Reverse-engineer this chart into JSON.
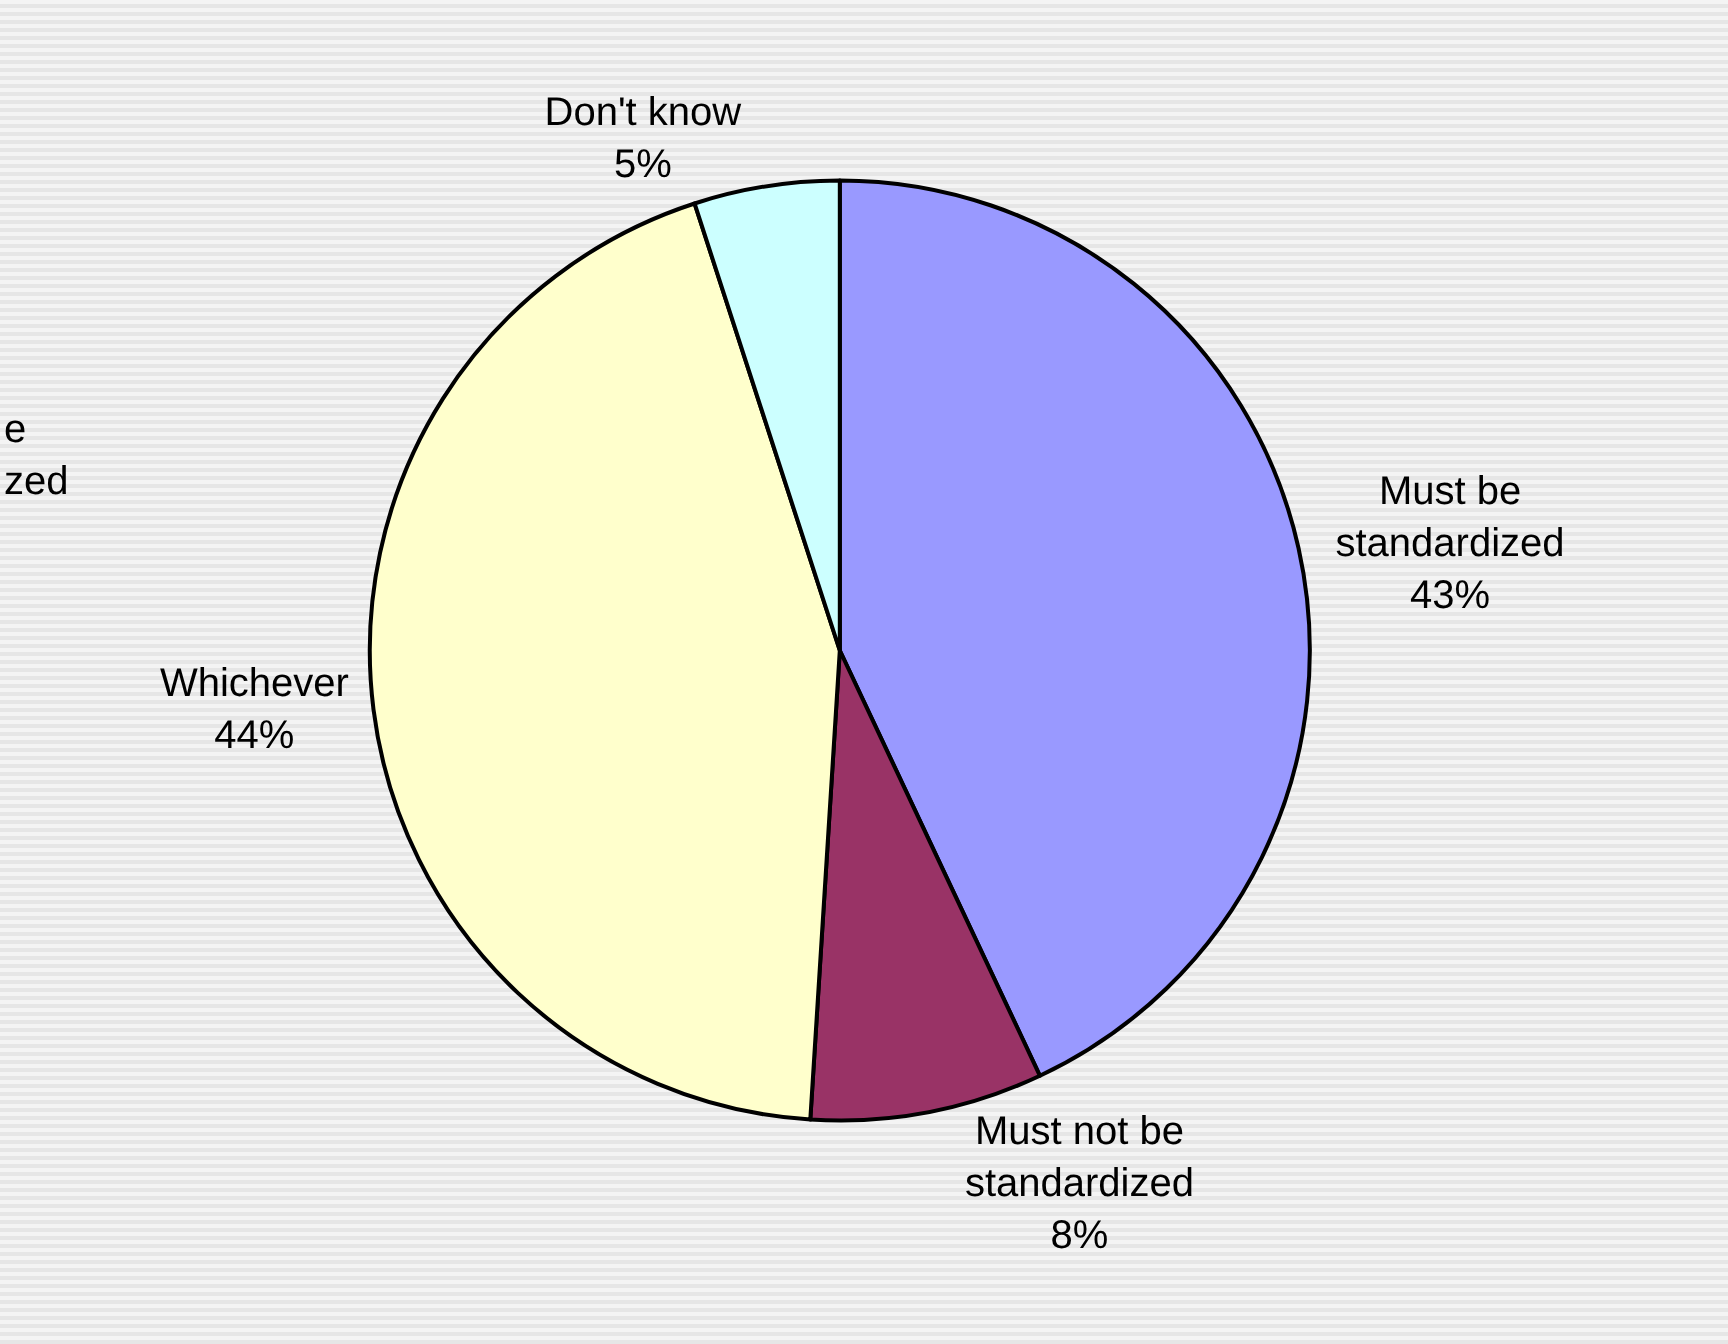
{
  "chart_data": {
    "type": "pie",
    "categories": [
      "Must be standardized",
      "Must not be standardized",
      "Whichever",
      "Don't know"
    ],
    "values": [
      43,
      8,
      44,
      5
    ],
    "value_labels": [
      "43%",
      "8%",
      "44%",
      "5%"
    ],
    "colors": [
      "#9999ff",
      "#993366",
      "#ffffcc",
      "#ccffff"
    ],
    "annotations": [
      "e\nzed"
    ],
    "legend": false
  }
}
